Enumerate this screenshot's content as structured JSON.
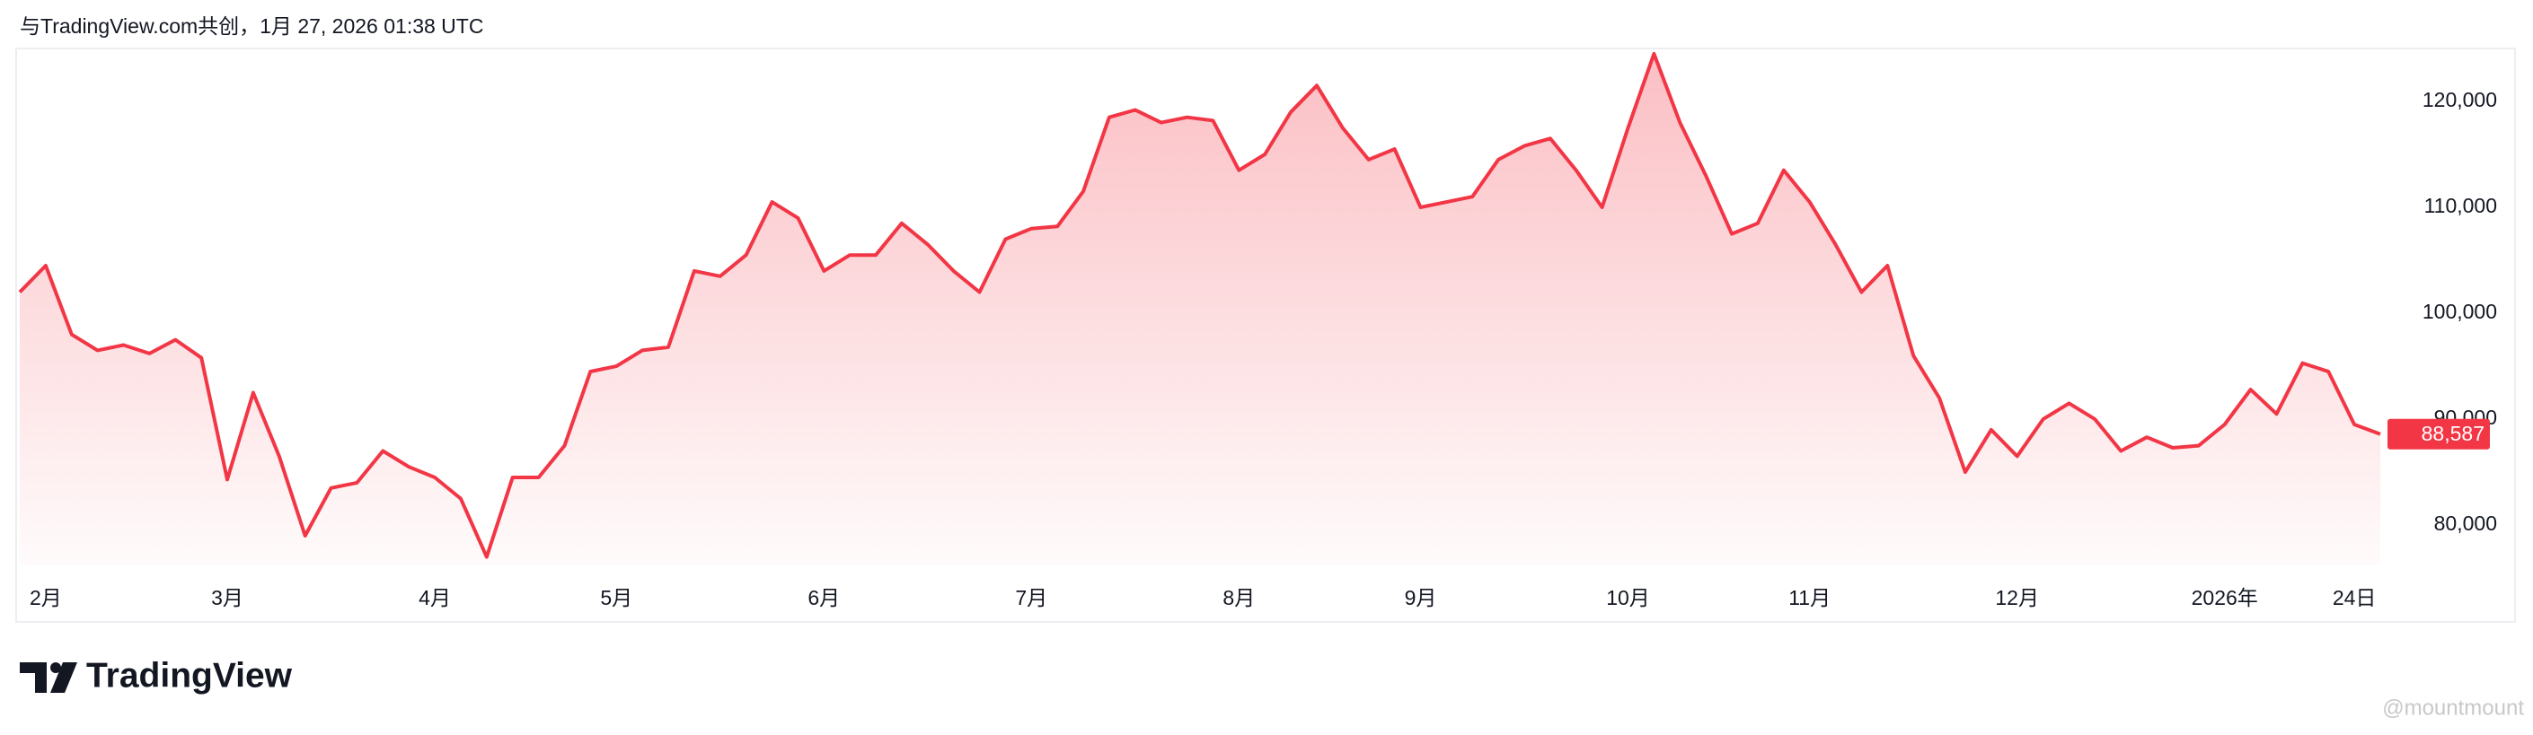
{
  "header": "与TradingView.com共创，1月 27, 2026 01:38 UTC",
  "logo": "TradingView",
  "watermark": "@mountmount",
  "chart_data": {
    "type": "line",
    "area": true,
    "color": "#f23645",
    "categories": [
      null,
      "2月",
      null,
      null,
      null,
      null,
      null,
      null,
      "3月",
      null,
      null,
      null,
      null,
      null,
      null,
      null,
      "4月",
      null,
      null,
      null,
      null,
      null,
      null,
      "5月",
      null,
      null,
      null,
      null,
      null,
      null,
      null,
      "6月",
      null,
      null,
      null,
      null,
      null,
      null,
      null,
      "7月",
      null,
      null,
      null,
      null,
      null,
      null,
      null,
      "8月",
      null,
      null,
      null,
      null,
      null,
      null,
      "9月",
      null,
      null,
      null,
      null,
      null,
      null,
      null,
      "10月",
      null,
      null,
      null,
      null,
      null,
      null,
      "11月",
      null,
      null,
      null,
      null,
      null,
      null,
      null,
      "12月",
      null,
      null,
      null,
      null,
      null,
      null,
      null,
      "2026年",
      null,
      null,
      null,
      null,
      "24日",
      null
    ],
    "values": [
      102000,
      104500,
      98000,
      96500,
      97000,
      96200,
      97500,
      95800,
      84300,
      92500,
      86500,
      79000,
      83500,
      84000,
      87000,
      85500,
      84500,
      82500,
      77000,
      84500,
      84500,
      87500,
      94500,
      95000,
      96500,
      96800,
      104000,
      103500,
      105500,
      110500,
      109000,
      104000,
      105500,
      105500,
      108500,
      106500,
      104000,
      102000,
      107000,
      108000,
      108200,
      111500,
      118500,
      119200,
      118000,
      118500,
      118200,
      113500,
      115000,
      119000,
      121500,
      117500,
      114500,
      115500,
      110000,
      110500,
      111000,
      114500,
      115800,
      116500,
      113500,
      110000,
      117500,
      124500,
      118000,
      113000,
      107500,
      108500,
      113500,
      110500,
      106500,
      102000,
      104500,
      96000,
      92000,
      85000,
      89000,
      86500,
      90000,
      91500,
      90000,
      87000,
      88300,
      87300,
      87500,
      89500,
      92800,
      90500,
      95300,
      94500,
      89500,
      88587
    ],
    "value_labels": [
      null,
      null,
      null,
      null,
      null,
      null,
      null,
      null,
      null,
      null,
      null,
      null,
      null,
      null,
      null,
      null,
      null,
      null,
      null,
      null,
      null,
      null,
      null,
      null,
      null,
      null,
      null,
      null,
      null,
      null,
      null,
      null,
      null,
      null,
      null,
      null,
      null,
      null,
      null,
      null,
      null,
      null,
      null,
      null,
      null,
      null,
      null,
      null,
      null,
      null,
      null,
      null,
      null,
      null,
      null,
      null,
      null,
      null,
      null,
      null,
      null,
      null,
      null,
      null,
      null,
      null,
      null,
      null,
      null,
      null,
      null,
      null,
      null,
      null,
      null,
      null,
      null,
      null,
      null,
      null,
      null,
      null,
      null,
      null,
      null,
      null,
      null,
      null,
      null,
      null,
      null,
      "88,587"
    ],
    "ylim": [
      76200,
      125000
    ],
    "yticks": [
      {
        "value": 80000,
        "label": "80,000"
      },
      {
        "value": 90000,
        "label": "90,000"
      },
      {
        "value": 100000,
        "label": "100,000"
      },
      {
        "value": 110000,
        "label": "110,000"
      },
      {
        "value": 120000,
        "label": "120,000"
      }
    ],
    "grid": false
  }
}
